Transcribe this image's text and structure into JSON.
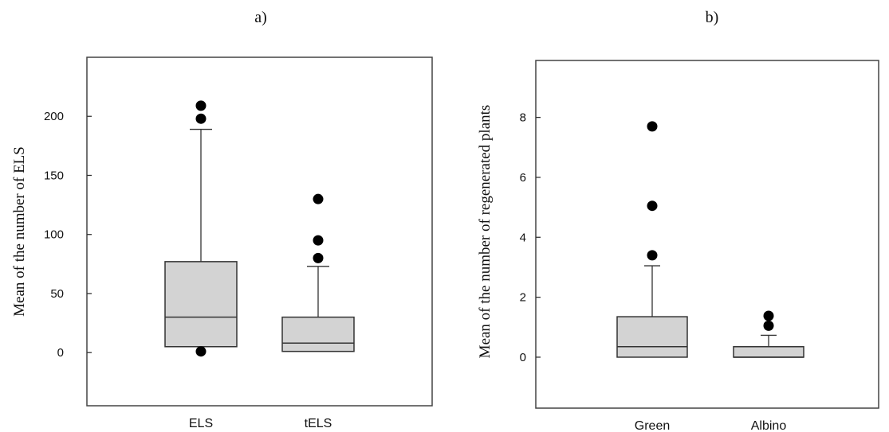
{
  "chart_data": [
    {
      "type": "box",
      "panel_label": "a)",
      "title": "",
      "ylabel": "Mean of the number of ELS",
      "xlabel": "",
      "ylim": [
        -45,
        250
      ],
      "yticks": [
        0,
        50,
        100,
        150,
        200
      ],
      "ytick_labels": [
        "0",
        "50",
        "100",
        "150",
        "200"
      ],
      "grid": false,
      "boxes": [
        {
          "category": "ELS",
          "whisker_low": 5,
          "q1": 5,
          "median": 30,
          "q3": 77,
          "whisker_high": 189,
          "outliers": [
            1,
            198,
            209
          ]
        },
        {
          "category": "tELS",
          "whisker_low": 1,
          "q1": 1,
          "median": 8,
          "q3": 30,
          "whisker_high": 73,
          "outliers": [
            80,
            95,
            130
          ]
        }
      ]
    },
    {
      "type": "box",
      "panel_label": "b)",
      "title": "",
      "ylabel": "Mean of the number of regenerated plants",
      "xlabel": "",
      "ylim": [
        -1.7,
        9.9
      ],
      "yticks": [
        0,
        2,
        4,
        6,
        8
      ],
      "ytick_labels": [
        "0",
        "2",
        "4",
        "6",
        "8"
      ],
      "grid": false,
      "boxes": [
        {
          "category": "Green",
          "whisker_low": 0,
          "q1": 0,
          "median": 0.35,
          "q3": 1.35,
          "whisker_high": 3.05,
          "outliers": [
            3.4,
            5.05,
            7.7
          ]
        },
        {
          "category": "Albino",
          "whisker_low": 0,
          "q1": 0,
          "median": 0,
          "q3": 0.35,
          "whisker_high": 0.73,
          "outliers": [
            1.05,
            1.38
          ]
        }
      ]
    }
  ]
}
